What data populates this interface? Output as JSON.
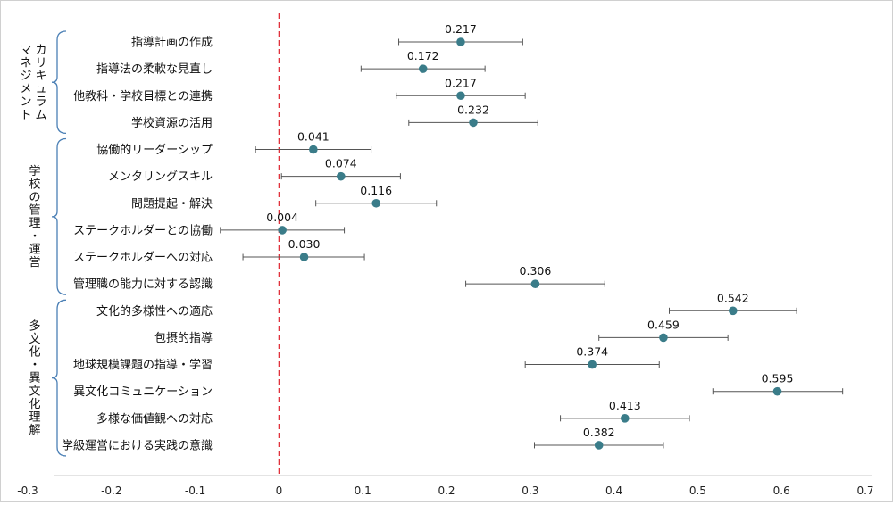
{
  "chart_data": {
    "type": "scatter",
    "title": "",
    "xlabel": "",
    "ylabel": "",
    "xlim": [
      -0.3,
      0.7
    ],
    "xticks": [
      "-0.3",
      "-0.2",
      "-0.1",
      "0",
      "0.1",
      "0.2",
      "0.3",
      "0.4",
      "0.5",
      "0.6",
      "0.7"
    ],
    "reference_line_x": 0,
    "grid": false,
    "colors": {
      "point": "#3a7c89",
      "error_bar": "#555555",
      "reference_line": "#e0323c",
      "bracket": "#4a7fb5"
    },
    "groups": [
      {
        "label_lines": [
          "カリキュラム",
          "マネジメント"
        ],
        "first": 0,
        "last": 3
      },
      {
        "label_lines": [
          "学校の管理・運営"
        ],
        "first": 4,
        "last": 9
      },
      {
        "label_lines": [
          "多文化・異文化理解"
        ],
        "first": 10,
        "last": 15
      }
    ],
    "items": [
      {
        "category": "指導計画の作成",
        "value": 0.217,
        "label": "0.217",
        "ci": [
          0.143,
          0.291
        ]
      },
      {
        "category": "指導法の柔軟な見直し",
        "value": 0.172,
        "label": "0.172",
        "ci": [
          0.098,
          0.246
        ]
      },
      {
        "category": "他教科・学校目標との連携",
        "value": 0.217,
        "label": "0.217",
        "ci": [
          0.14,
          0.294
        ]
      },
      {
        "category": "学校資源の活用",
        "value": 0.232,
        "label": "0.232",
        "ci": [
          0.155,
          0.309
        ]
      },
      {
        "category": "協働的リーダーシップ",
        "value": 0.041,
        "label": "0.041",
        "ci": [
          -0.028,
          0.11
        ]
      },
      {
        "category": "メンタリングスキル",
        "value": 0.074,
        "label": "0.074",
        "ci": [
          0.003,
          0.145
        ]
      },
      {
        "category": "問題提起・解決",
        "value": 0.116,
        "label": "0.116",
        "ci": [
          0.044,
          0.188
        ]
      },
      {
        "category": "ステークホルダーとの協働",
        "value": 0.004,
        "label": "0.004",
        "ci": [
          -0.07,
          0.078
        ]
      },
      {
        "category": "ステークホルダーへの対応",
        "value": 0.03,
        "label": "0.030",
        "ci": [
          -0.043,
          0.102
        ]
      },
      {
        "category": "管理職の能力に対する認識",
        "value": 0.306,
        "label": "0.306",
        "ci": [
          0.223,
          0.389
        ]
      },
      {
        "category": "文化的多様性への適応",
        "value": 0.542,
        "label": "0.542",
        "ci": [
          0.466,
          0.618
        ]
      },
      {
        "category": "包摂的指導",
        "value": 0.459,
        "label": "0.459",
        "ci": [
          0.382,
          0.536
        ]
      },
      {
        "category": "地球規模課題の指導・学習",
        "value": 0.374,
        "label": "0.374",
        "ci": [
          0.294,
          0.454
        ]
      },
      {
        "category": "異文化コミュニケーション",
        "value": 0.595,
        "label": "0.595",
        "ci": [
          0.518,
          0.673
        ]
      },
      {
        "category": "多様な価値観への対応",
        "value": 0.413,
        "label": "0.413",
        "ci": [
          0.336,
          0.49
        ]
      },
      {
        "category": "学級運営における実践の意識",
        "value": 0.382,
        "label": "0.382",
        "ci": [
          0.305,
          0.459
        ]
      }
    ]
  }
}
